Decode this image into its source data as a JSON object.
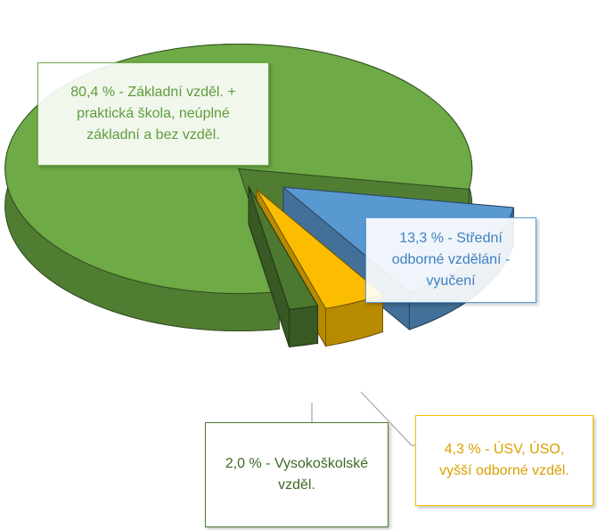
{
  "chart_data": {
    "type": "pie",
    "values": [
      80.4,
      13.3,
      4.3,
      2.0
    ],
    "value_labels": [
      "80,4 % - Základní vzděl. + praktická škola, neúplné základní a bez vzděl.",
      "13,3 % - Střední odborné vzdělání - vyučení",
      "4,3 % - ÚSV, ÚSO, vyšší odborné vzděl.",
      "2,0 % - Vysokoškolské vzděl."
    ],
    "colors": [
      "#70ad47",
      "#5b9bd5",
      "#ffc000",
      "#4e7a32"
    ]
  }
}
